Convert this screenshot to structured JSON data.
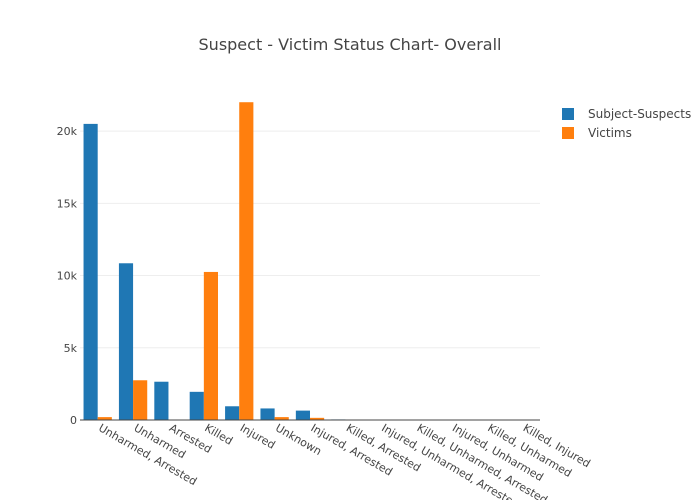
{
  "chart_data": {
    "type": "bar",
    "title": "Suspect - Victim Status Chart- Overall",
    "categories": [
      "Unharmed, Arrested",
      "Unharmed",
      "Arrested",
      "Killed",
      "Injured",
      "Unknown",
      "Injured, Arrested",
      "Killed, Arrested",
      "Injured, Unharmed, Arrested",
      "Killed, Unharmed, Arrested",
      "Injured, Unharmed",
      "Killed, Unharmed",
      "Killed, Injured"
    ],
    "series": [
      {
        "name": "Subject-Suspects",
        "color": "#1f77b4",
        "values": [
          20500,
          10850,
          2650,
          1950,
          950,
          800,
          650,
          40,
          20,
          10,
          10,
          5,
          5
        ]
      },
      {
        "name": "Victims",
        "color": "#ff7f0e",
        "values": [
          200,
          2750,
          0,
          10250,
          22000,
          200,
          150,
          30,
          10,
          5,
          5,
          5,
          5
        ]
      }
    ],
    "ylim": [
      0,
      22500
    ],
    "yticks": [
      0,
      5000,
      10000,
      15000,
      20000
    ],
    "ytick_labels": [
      "0",
      "5k",
      "10k",
      "15k",
      "20k"
    ],
    "grid": true,
    "legend_position": "top-right",
    "xlabel": "",
    "ylabel": ""
  }
}
